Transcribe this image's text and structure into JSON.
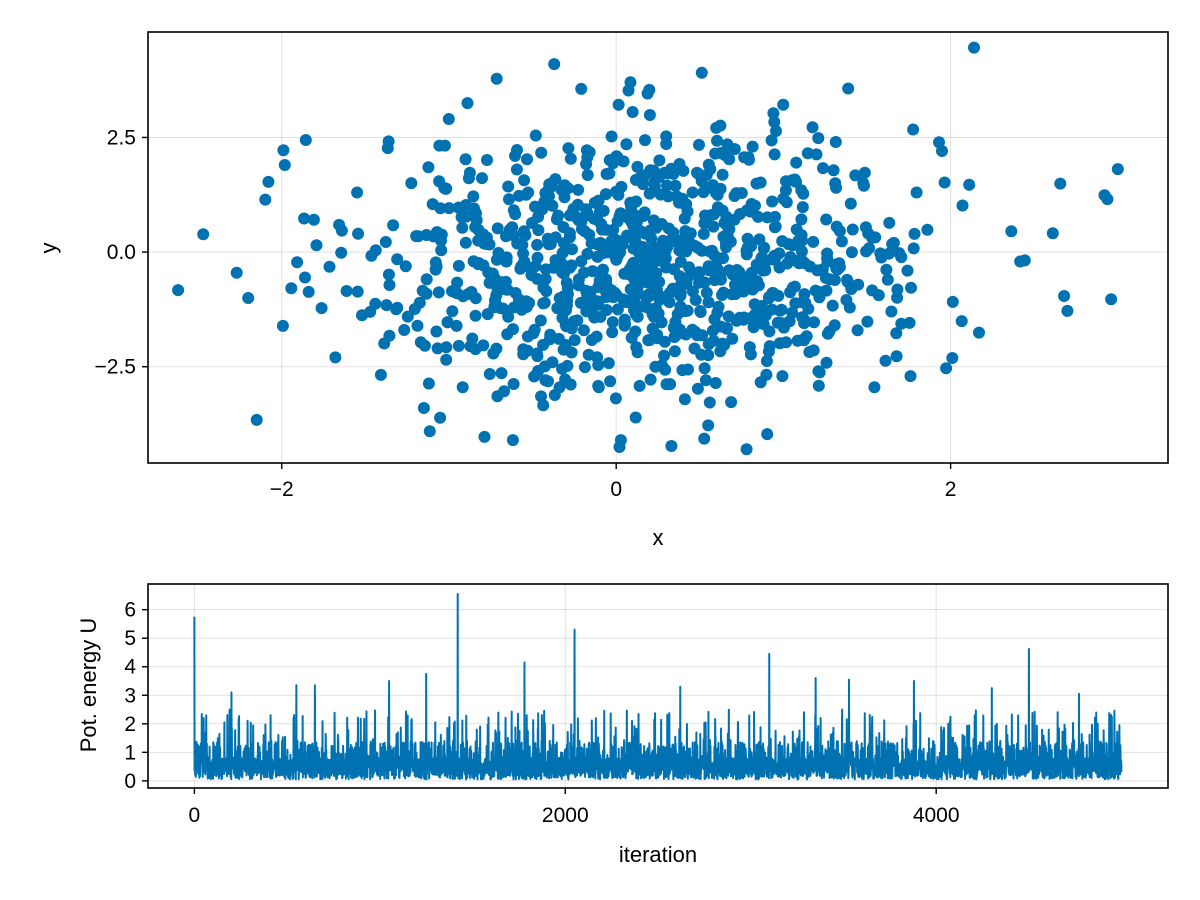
{
  "chart_data": [
    {
      "type": "scatter",
      "xlabel": "x",
      "ylabel": "y",
      "xlim": [
        -2.8,
        3.3
      ],
      "ylim": [
        -4.6,
        4.8
      ],
      "xticks": [
        -2,
        0,
        2
      ],
      "yticks": [
        -2.5,
        0.0,
        2.5
      ],
      "xtick_labels": [
        "−2",
        "0",
        "2"
      ],
      "ytick_labels": [
        "−2.5",
        "0.0",
        "2.5"
      ],
      "grid": true,
      "marker_color": "#0072b2",
      "n_points": 1000,
      "distribution": {
        "x_mean": 0.2,
        "x_std": 0.85,
        "y_mean": -0.2,
        "y_std": 1.45,
        "correlation": 0.05
      },
      "highlighted_points": [
        {
          "x": -2.62,
          "y": -0.83
        },
        {
          "x": -2.47,
          "y": 0.39
        },
        {
          "x": -2.15,
          "y": -3.66
        },
        {
          "x": -2.08,
          "y": 1.53
        },
        {
          "x": -1.99,
          "y": 2.22
        },
        {
          "x": -1.15,
          "y": -3.4
        },
        {
          "x": 0.02,
          "y": -4.25
        },
        {
          "x": 0.33,
          "y": -4.23
        },
        {
          "x": 0.55,
          "y": -3.78
        },
        {
          "x": 0.78,
          "y": -4.3
        },
        {
          "x": 0.94,
          "y": 3.03
        },
        {
          "x": 2.14,
          "y": 4.46
        },
        {
          "x": 2.92,
          "y": 1.24
        },
        {
          "x": 2.96,
          "y": -1.03
        },
        {
          "x": 3.0,
          "y": 1.81
        }
      ]
    },
    {
      "type": "line",
      "xlabel": "iteration",
      "ylabel": "Pot. energy U",
      "xlim": [
        -250,
        5250
      ],
      "ylim": [
        -0.25,
        6.9
      ],
      "xticks": [
        0,
        2000,
        4000
      ],
      "yticks": [
        0,
        1,
        2,
        3,
        4,
        5,
        6
      ],
      "xtick_labels": [
        "0",
        "2000",
        "4000"
      ],
      "ytick_labels": [
        "0",
        "1",
        "2",
        "3",
        "4",
        "5",
        "6"
      ],
      "grid": true,
      "line_color": "#0072b2",
      "n_iterations": 5000,
      "baseline_level": 0.6,
      "spikes": [
        {
          "x": 0,
          "y": 5.75
        },
        {
          "x": 50,
          "y": 2.2
        },
        {
          "x": 200,
          "y": 3.1
        },
        {
          "x": 550,
          "y": 3.35
        },
        {
          "x": 650,
          "y": 3.35
        },
        {
          "x": 1050,
          "y": 3.5
        },
        {
          "x": 1250,
          "y": 3.75
        },
        {
          "x": 1420,
          "y": 6.55
        },
        {
          "x": 1780,
          "y": 4.15
        },
        {
          "x": 2050,
          "y": 5.3
        },
        {
          "x": 2620,
          "y": 3.3
        },
        {
          "x": 3100,
          "y": 4.45
        },
        {
          "x": 3350,
          "y": 3.6
        },
        {
          "x": 3530,
          "y": 3.55
        },
        {
          "x": 3880,
          "y": 3.5
        },
        {
          "x": 4300,
          "y": 3.25
        },
        {
          "x": 4500,
          "y": 4.62
        },
        {
          "x": 4770,
          "y": 3.05
        }
      ]
    }
  ]
}
